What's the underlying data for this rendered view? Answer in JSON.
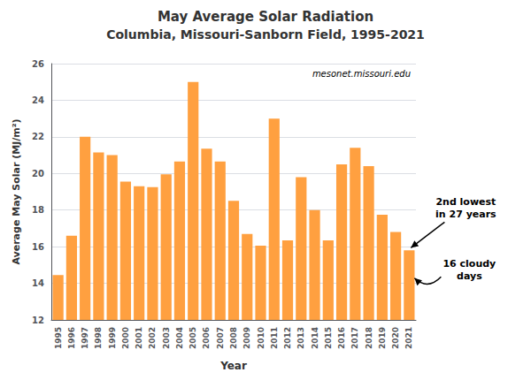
{
  "chart_data": {
    "type": "bar",
    "title": "May Average Solar Radiation",
    "subtitle": "Columbia, Missouri-Sanborn Field, 1995-2021",
    "xlabel": "Year",
    "ylabel": "Average May Solar (MJ/m²)",
    "watermark": "mesonet.missouri.edu",
    "annotations": [
      "2nd lowest\nin 27 years",
      "16 cloudy\ndays"
    ],
    "categories": [
      "1995",
      "1996",
      "1997",
      "1998",
      "1999",
      "2000",
      "2001",
      "2002",
      "2003",
      "2004",
      "2005",
      "2006",
      "2007",
      "2008",
      "2009",
      "2010",
      "2011",
      "2012",
      "2013",
      "2014",
      "2015",
      "2016",
      "2017",
      "2018",
      "2019",
      "2020",
      "2021"
    ],
    "values": [
      14.45,
      16.6,
      22.0,
      21.15,
      21.0,
      19.55,
      19.3,
      19.25,
      19.95,
      20.65,
      25.0,
      21.35,
      20.65,
      18.5,
      16.7,
      16.05,
      23.0,
      16.35,
      19.8,
      18.0,
      16.35,
      20.5,
      21.4,
      20.4,
      17.75,
      16.8,
      15.8
    ],
    "color": "#FFA040",
    "ylim": [
      12,
      26
    ],
    "yticks": [
      12,
      14,
      16,
      18,
      20,
      22,
      24,
      26
    ],
    "grid": true
  }
}
